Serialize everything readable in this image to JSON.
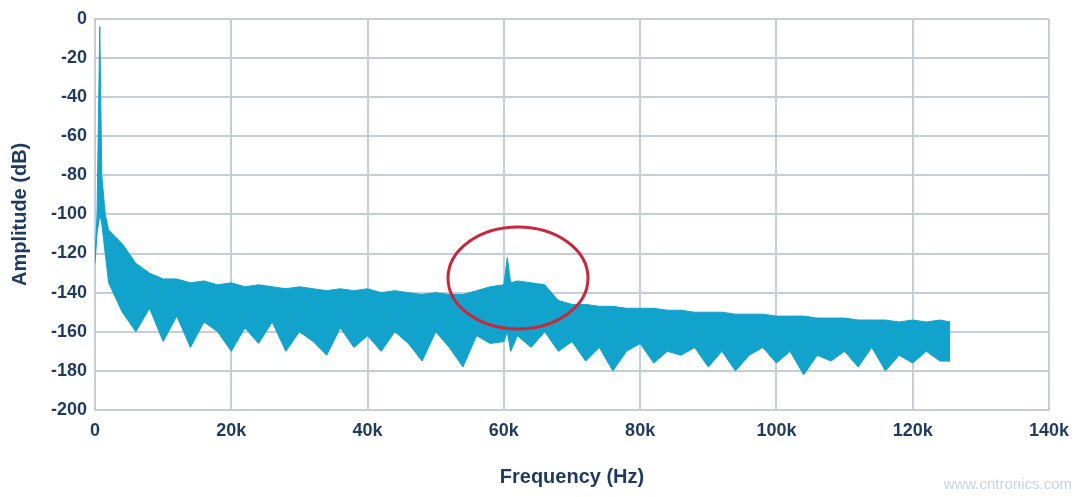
{
  "chart_data": {
    "type": "line",
    "xlabel": "Frequency (Hz)",
    "ylabel": "Amplitude (dB)",
    "watermark": "www.cntronics.com",
    "x": [
      0,
      300,
      700,
      1000,
      1500,
      2000,
      4000,
      6000,
      8000,
      10000,
      12000,
      14000,
      16000,
      18000,
      20000,
      22000,
      24000,
      26000,
      28000,
      30000,
      32000,
      34000,
      36000,
      38000,
      40000,
      42000,
      44000,
      46000,
      48000,
      50000,
      52000,
      54000,
      56000,
      58000,
      60000,
      60500,
      61000,
      62000,
      64000,
      66000,
      68000,
      70000,
      72000,
      74000,
      76000,
      78000,
      80000,
      82000,
      84000,
      86000,
      88000,
      90000,
      92000,
      94000,
      96000,
      98000,
      100000,
      102000,
      104000,
      106000,
      108000,
      110000,
      112000,
      114000,
      116000,
      118000,
      120000,
      122000,
      124000,
      125500
    ],
    "series": [
      {
        "color": "#12a3cc",
        "values": [
          -122,
          -100,
          -4,
          -80,
          -100,
          -108,
          -115,
          -125,
          -130,
          -133,
          -133,
          -135,
          -134,
          -136,
          -135,
          -137,
          -136,
          -137,
          -138,
          -137,
          -138,
          -139,
          -138,
          -139,
          -138,
          -140,
          -139,
          -140,
          -141,
          -140,
          -141,
          -141,
          -139,
          -137,
          -136,
          -122,
          -135,
          -134,
          -135,
          -136,
          -144,
          -146,
          -146,
          -147,
          -147,
          -148,
          -148,
          -148,
          -149,
          -149,
          -150,
          -150,
          -150,
          -151,
          -151,
          -151,
          -152,
          -152,
          -152,
          -153,
          -153,
          -153,
          -154,
          -154,
          -154,
          -155,
          -154,
          -155,
          -154,
          -155
        ]
      },
      {
        "color": "#12a3cc",
        "values": [
          -125,
          -110,
          -100,
          -105,
          -120,
          -135,
          -150,
          -160,
          -148,
          -165,
          -152,
          -168,
          -155,
          -160,
          -170,
          -158,
          -166,
          -155,
          -170,
          -160,
          -165,
          -172,
          -158,
          -168,
          -162,
          -170,
          -160,
          -166,
          -175,
          -160,
          -168,
          -178,
          -162,
          -166,
          -165,
          -160,
          -170,
          -162,
          -168,
          -160,
          -170,
          -165,
          -175,
          -168,
          -180,
          -170,
          -166,
          -176,
          -170,
          -172,
          -168,
          -178,
          -170,
          -180,
          -172,
          -168,
          -176,
          -170,
          -182,
          -172,
          -175,
          -170,
          -178,
          -168,
          -180,
          -172,
          -176,
          -170,
          -175,
          -175
        ]
      }
    ],
    "xlim": [
      0,
      140000
    ],
    "xticks": [
      0,
      {
        "value": 20000,
        "label": "20k"
      },
      {
        "value": 40000,
        "label": "40k"
      },
      {
        "value": 60000,
        "label": "60k"
      },
      {
        "value": 80000,
        "label": "80k"
      },
      {
        "value": 100000,
        "label": "100k"
      },
      {
        "value": 120000,
        "label": "120k"
      },
      {
        "value": 140000,
        "label": "140k"
      }
    ],
    "ylim": [
      -200,
      0
    ],
    "yticks": [
      -200,
      -180,
      -160,
      -140,
      -120,
      -100,
      -80,
      -60,
      -40,
      -20,
      0
    ],
    "grid": true
  }
}
